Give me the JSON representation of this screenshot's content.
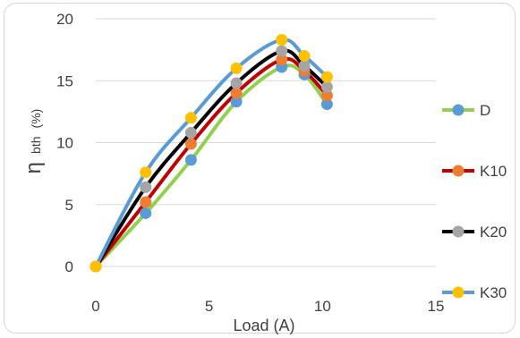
{
  "chart_data": {
    "type": "line",
    "title": "",
    "xlabel": "Load (A)",
    "ylabel": {
      "symbol": "η",
      "subscript": "bth",
      "unit": "(%)"
    },
    "xlim": [
      0,
      15
    ],
    "ylim": [
      0,
      20
    ],
    "xticks": [
      "0",
      "5",
      "10",
      "15"
    ],
    "yticks": [
      "0",
      "5",
      "10",
      "15",
      "20"
    ],
    "grid": "horizontal",
    "legend_position": "right",
    "x": [
      0,
      2.2,
      4.2,
      6.2,
      8.2,
      9.2,
      10.2
    ],
    "series": [
      {
        "name": "D",
        "values": [
          0,
          4.3,
          8.6,
          13.3,
          16.1,
          15.5,
          13.1
        ],
        "line_color": "#92D050",
        "marker_color": "#5B9BD5"
      },
      {
        "name": "K10",
        "values": [
          0,
          5.2,
          9.9,
          14.0,
          16.7,
          15.8,
          13.8
        ],
        "line_color": "#C00000",
        "marker_color": "#ED7D31"
      },
      {
        "name": "K20",
        "values": [
          0,
          6.4,
          10.8,
          14.8,
          17.4,
          16.2,
          14.5
        ],
        "line_color": "#000000",
        "marker_color": "#A5A5A5"
      },
      {
        "name": "K30",
        "values": [
          0,
          7.6,
          12.0,
          16.0,
          18.3,
          17.0,
          15.3
        ],
        "line_color": "#5B9BD5",
        "marker_color": "#FFC000"
      }
    ]
  }
}
